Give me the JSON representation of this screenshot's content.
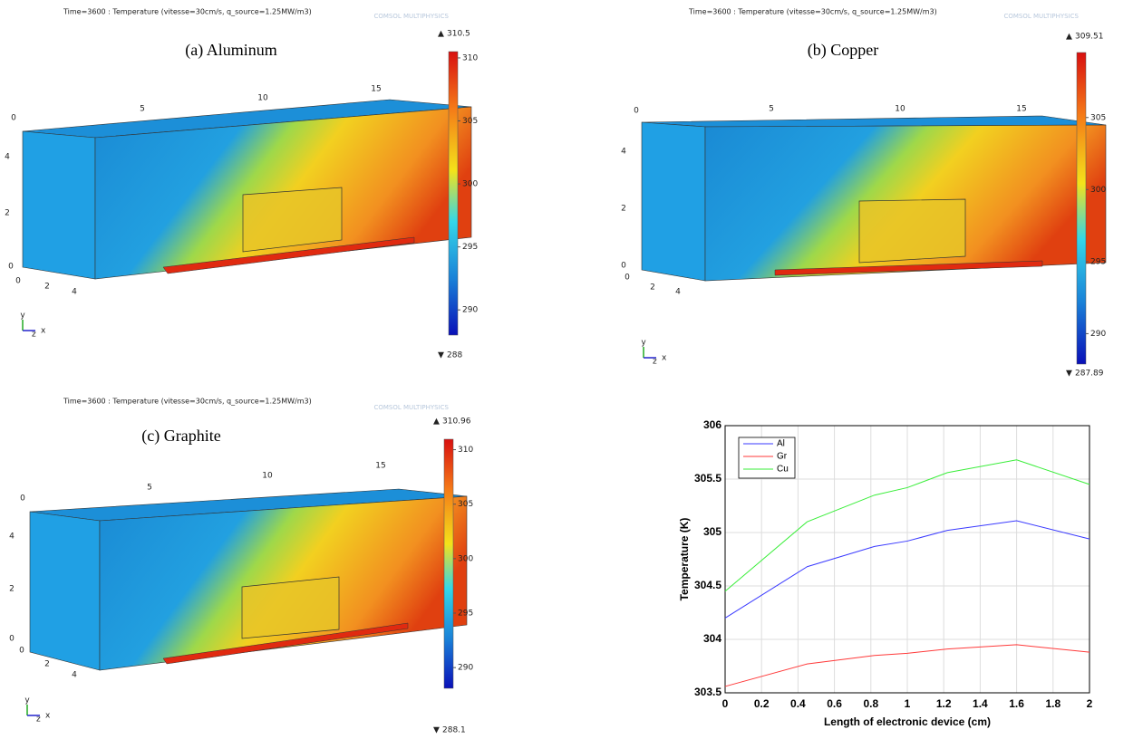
{
  "panels": [
    {
      "header": "Time=3600 : Temperature (vitesse=30cm/s, q_source=1.25MW/m3)",
      "logo": "COMSOL MULTIPHYSICS",
      "caption": "(a) Aluminum",
      "max": 310.5,
      "min": 288,
      "colorbar_ticks": [
        310,
        305,
        300,
        295,
        290
      ],
      "x_ticks": [
        "0",
        "5",
        "10",
        "15"
      ],
      "y_ticks": [
        "4",
        "2",
        "0"
      ],
      "z_ticks": [
        "0",
        "2",
        "4"
      ],
      "triad": [
        "y",
        "z",
        "x"
      ]
    },
    {
      "header": "Time=3600 : Temperature (vitesse=30cm/s, q_source=1.25MW/m3)",
      "logo": "COMSOL MULTIPHYSICS",
      "caption": "(b) Copper",
      "max": 309.51,
      "min": 287.89,
      "colorbar_ticks": [
        305,
        300,
        295,
        290
      ],
      "x_ticks": [
        "0",
        "5",
        "10",
        "15"
      ],
      "y_ticks": [
        "4",
        "2",
        "0"
      ],
      "z_ticks": [
        "0",
        "2",
        "4"
      ],
      "triad": [
        "y",
        "z",
        "x"
      ]
    },
    {
      "header": "Time=3600 : Temperature (vitesse=30cm/s, q_source=1.25MW/m3)",
      "logo": "COMSOL MULTIPHYSICS",
      "caption": "(c) Graphite",
      "max": 310.96,
      "min": 288.1,
      "colorbar_ticks": [
        310,
        305,
        300,
        295,
        290
      ],
      "x_ticks": [
        "0",
        "5",
        "10",
        "15"
      ],
      "y_ticks": [
        "4",
        "2",
        "0"
      ],
      "z_ticks": [
        "0",
        "2",
        "4"
      ],
      "triad": [
        "y",
        "z",
        "x"
      ]
    }
  ],
  "chart_data": {
    "type": "line",
    "x_label": "Length of electronic device (cm)",
    "y_label": "Temperature (K)",
    "x": [
      0,
      0.45,
      0.82,
      1.0,
      1.22,
      1.6,
      2.0
    ],
    "series": [
      {
        "name": "Al",
        "color": "#3a3aff",
        "values": [
          304.2,
          304.68,
          304.87,
          304.92,
          305.02,
          305.11,
          304.94
        ]
      },
      {
        "name": "Gr",
        "color": "#ff3a3a",
        "values": [
          303.56,
          303.77,
          303.85,
          303.87,
          303.91,
          303.95,
          303.88
        ]
      },
      {
        "name": "Cu",
        "color": "#3aee3a",
        "values": [
          304.45,
          305.1,
          305.35,
          305.42,
          305.56,
          305.68,
          305.45
        ]
      }
    ],
    "xlim": [
      0,
      2
    ],
    "xticks": [
      0,
      0.2,
      0.4,
      0.6,
      0.8,
      1,
      1.2,
      1.4,
      1.6,
      1.8,
      2
    ],
    "ylim": [
      303.5,
      306
    ],
    "yticks": [
      303.5,
      304,
      304.5,
      305,
      305.5,
      306
    ],
    "grid": true,
    "legend": "upper-left"
  }
}
